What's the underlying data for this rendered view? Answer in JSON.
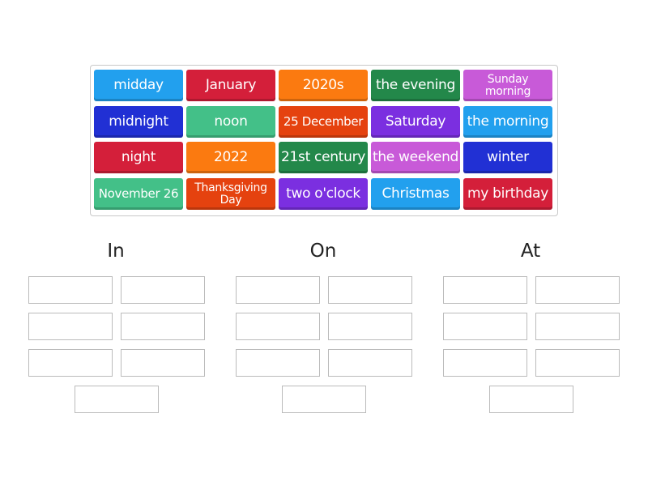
{
  "tiles": [
    {
      "label": "midday",
      "color": "#22a0ee"
    },
    {
      "label": "January",
      "color": "#d41f3a"
    },
    {
      "label": "2020s",
      "color": "#fb7a10"
    },
    {
      "label": "the evening",
      "color": "#23884a"
    },
    {
      "label": "Sunday morning",
      "color": "#c85ad8",
      "size": "sm"
    },
    {
      "label": "midnight",
      "color": "#2130d4"
    },
    {
      "label": "noon",
      "color": "#43c088"
    },
    {
      "label": "25 December",
      "color": "#e5420f",
      "size": "xs"
    },
    {
      "label": "Saturday",
      "color": "#7b2fe0"
    },
    {
      "label": "the morning",
      "color": "#22a0ee"
    },
    {
      "label": "night",
      "color": "#d41f3a"
    },
    {
      "label": "2022",
      "color": "#fb7a10"
    },
    {
      "label": "21st century",
      "color": "#23884a"
    },
    {
      "label": "the weekend",
      "color": "#c85ad8"
    },
    {
      "label": "winter",
      "color": "#2130d4"
    },
    {
      "label": "November 26",
      "color": "#43c088",
      "size": "xs"
    },
    {
      "label": "Thanksgiving Day",
      "color": "#e5420f",
      "size": "sm"
    },
    {
      "label": "two o'clock",
      "color": "#7b2fe0"
    },
    {
      "label": "Christmas",
      "color": "#22a0ee"
    },
    {
      "label": "my birthday",
      "color": "#d41f3a"
    }
  ],
  "groups": [
    {
      "title": "In"
    },
    {
      "title": "On"
    },
    {
      "title": "At"
    }
  ]
}
